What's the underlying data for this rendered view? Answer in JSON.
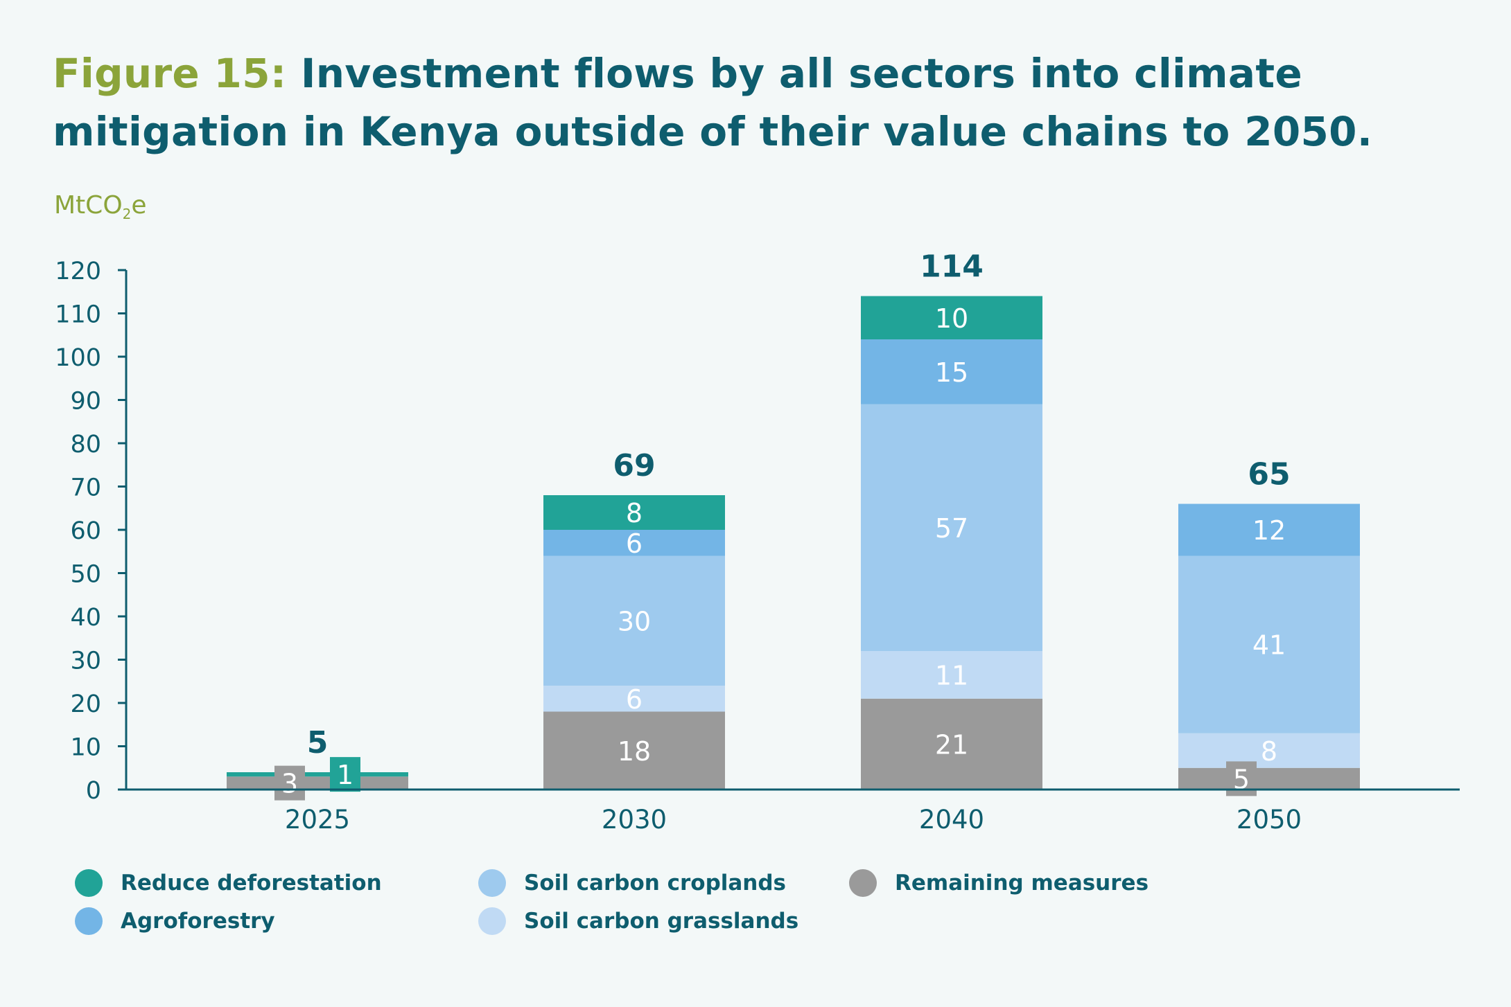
{
  "title": {
    "figure": "Figure 15:",
    "text": "Investment flows by all sectors into climate mitigation in Kenya outside of their value chains to 2050."
  },
  "unit_label": {
    "main": "MtCO",
    "sub": "2",
    "suffix": "e"
  },
  "colors": {
    "reduce_deforestation": "#21a397",
    "agroforestry": "#73b5e6",
    "soil_carbon_croplands": "#9ecaee",
    "soil_carbon_grasslands": "#c0daf4",
    "remaining_measures": "#9a9a9a",
    "axis": "#0e5d6e",
    "title_accent": "#8ba43a"
  },
  "chart_data": {
    "type": "bar",
    "stacked": true,
    "categories": [
      "2025",
      "2030",
      "2040",
      "2050"
    ],
    "ylim": [
      0,
      120
    ],
    "yticks": [
      0,
      10,
      20,
      30,
      40,
      50,
      60,
      70,
      80,
      90,
      100,
      110,
      120
    ],
    "ylabel": "MtCO2e",
    "xlabel": "",
    "series": [
      {
        "name": "Remaining measures",
        "color": "#9a9a9a",
        "values": [
          3,
          18,
          21,
          5
        ]
      },
      {
        "name": "Soil carbon grasslands",
        "color": "#c0daf4",
        "values": [
          0,
          6,
          11,
          8
        ]
      },
      {
        "name": "Soil carbon croplands",
        "color": "#9ecaee",
        "values": [
          0,
          30,
          57,
          41
        ]
      },
      {
        "name": "Agroforestry",
        "color": "#73b5e6",
        "values": [
          0,
          6,
          15,
          12
        ]
      },
      {
        "name": "Reduce deforestation",
        "color": "#21a397",
        "values": [
          1,
          8,
          10,
          0
        ]
      }
    ],
    "totals": [
      5,
      69,
      114,
      65
    ],
    "legend": [
      {
        "label": "Reduce deforestation",
        "color": "#21a397"
      },
      {
        "label": "Agroforestry",
        "color": "#73b5e6"
      },
      {
        "label": "Soil carbon croplands",
        "color": "#9ecaee"
      },
      {
        "label": "Soil carbon grasslands",
        "color": "#c0daf4"
      },
      {
        "label": "Remaining measures",
        "color": "#9a9a9a"
      }
    ]
  }
}
